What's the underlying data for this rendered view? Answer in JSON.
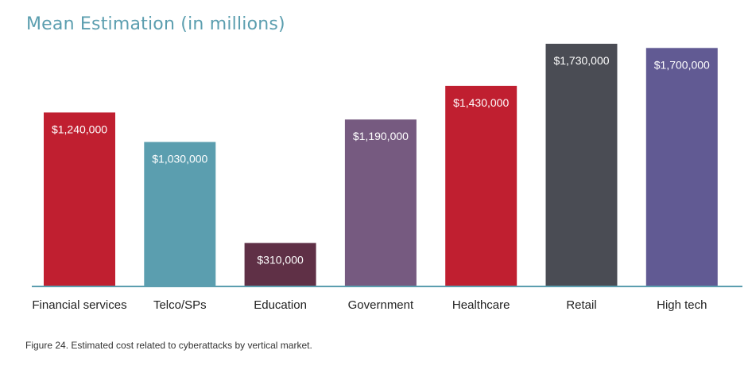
{
  "title": "Mean Estimation (in millions)",
  "caption": "Figure 24. Estimated cost related to cyberattacks by vertical market.",
  "colors": {
    "axis": "#5b9eaf",
    "title": "#5b9eaf"
  },
  "chart_data": {
    "type": "bar",
    "title": "Mean Estimation (in millions)",
    "categories": [
      "Financial services",
      "Telco/SPs",
      "Education",
      "Government",
      "Healthcare",
      "Retail",
      "High tech"
    ],
    "values": [
      1240000,
      1030000,
      310000,
      1190000,
      1430000,
      1730000,
      1700000
    ],
    "data_labels": [
      "$1,240,000",
      "$1,030,000",
      "$310,000",
      "$1,190,000",
      "$1,430,000",
      "$1,730,000",
      "$1,700,000"
    ],
    "bar_colors": [
      "#c01f30",
      "#5b9eaf",
      "#5f3046",
      "#765a80",
      "#c01f30",
      "#4a4c54",
      "#615a93"
    ],
    "ylim": [
      0,
      1730000
    ],
    "grid": false,
    "legend": "none"
  }
}
